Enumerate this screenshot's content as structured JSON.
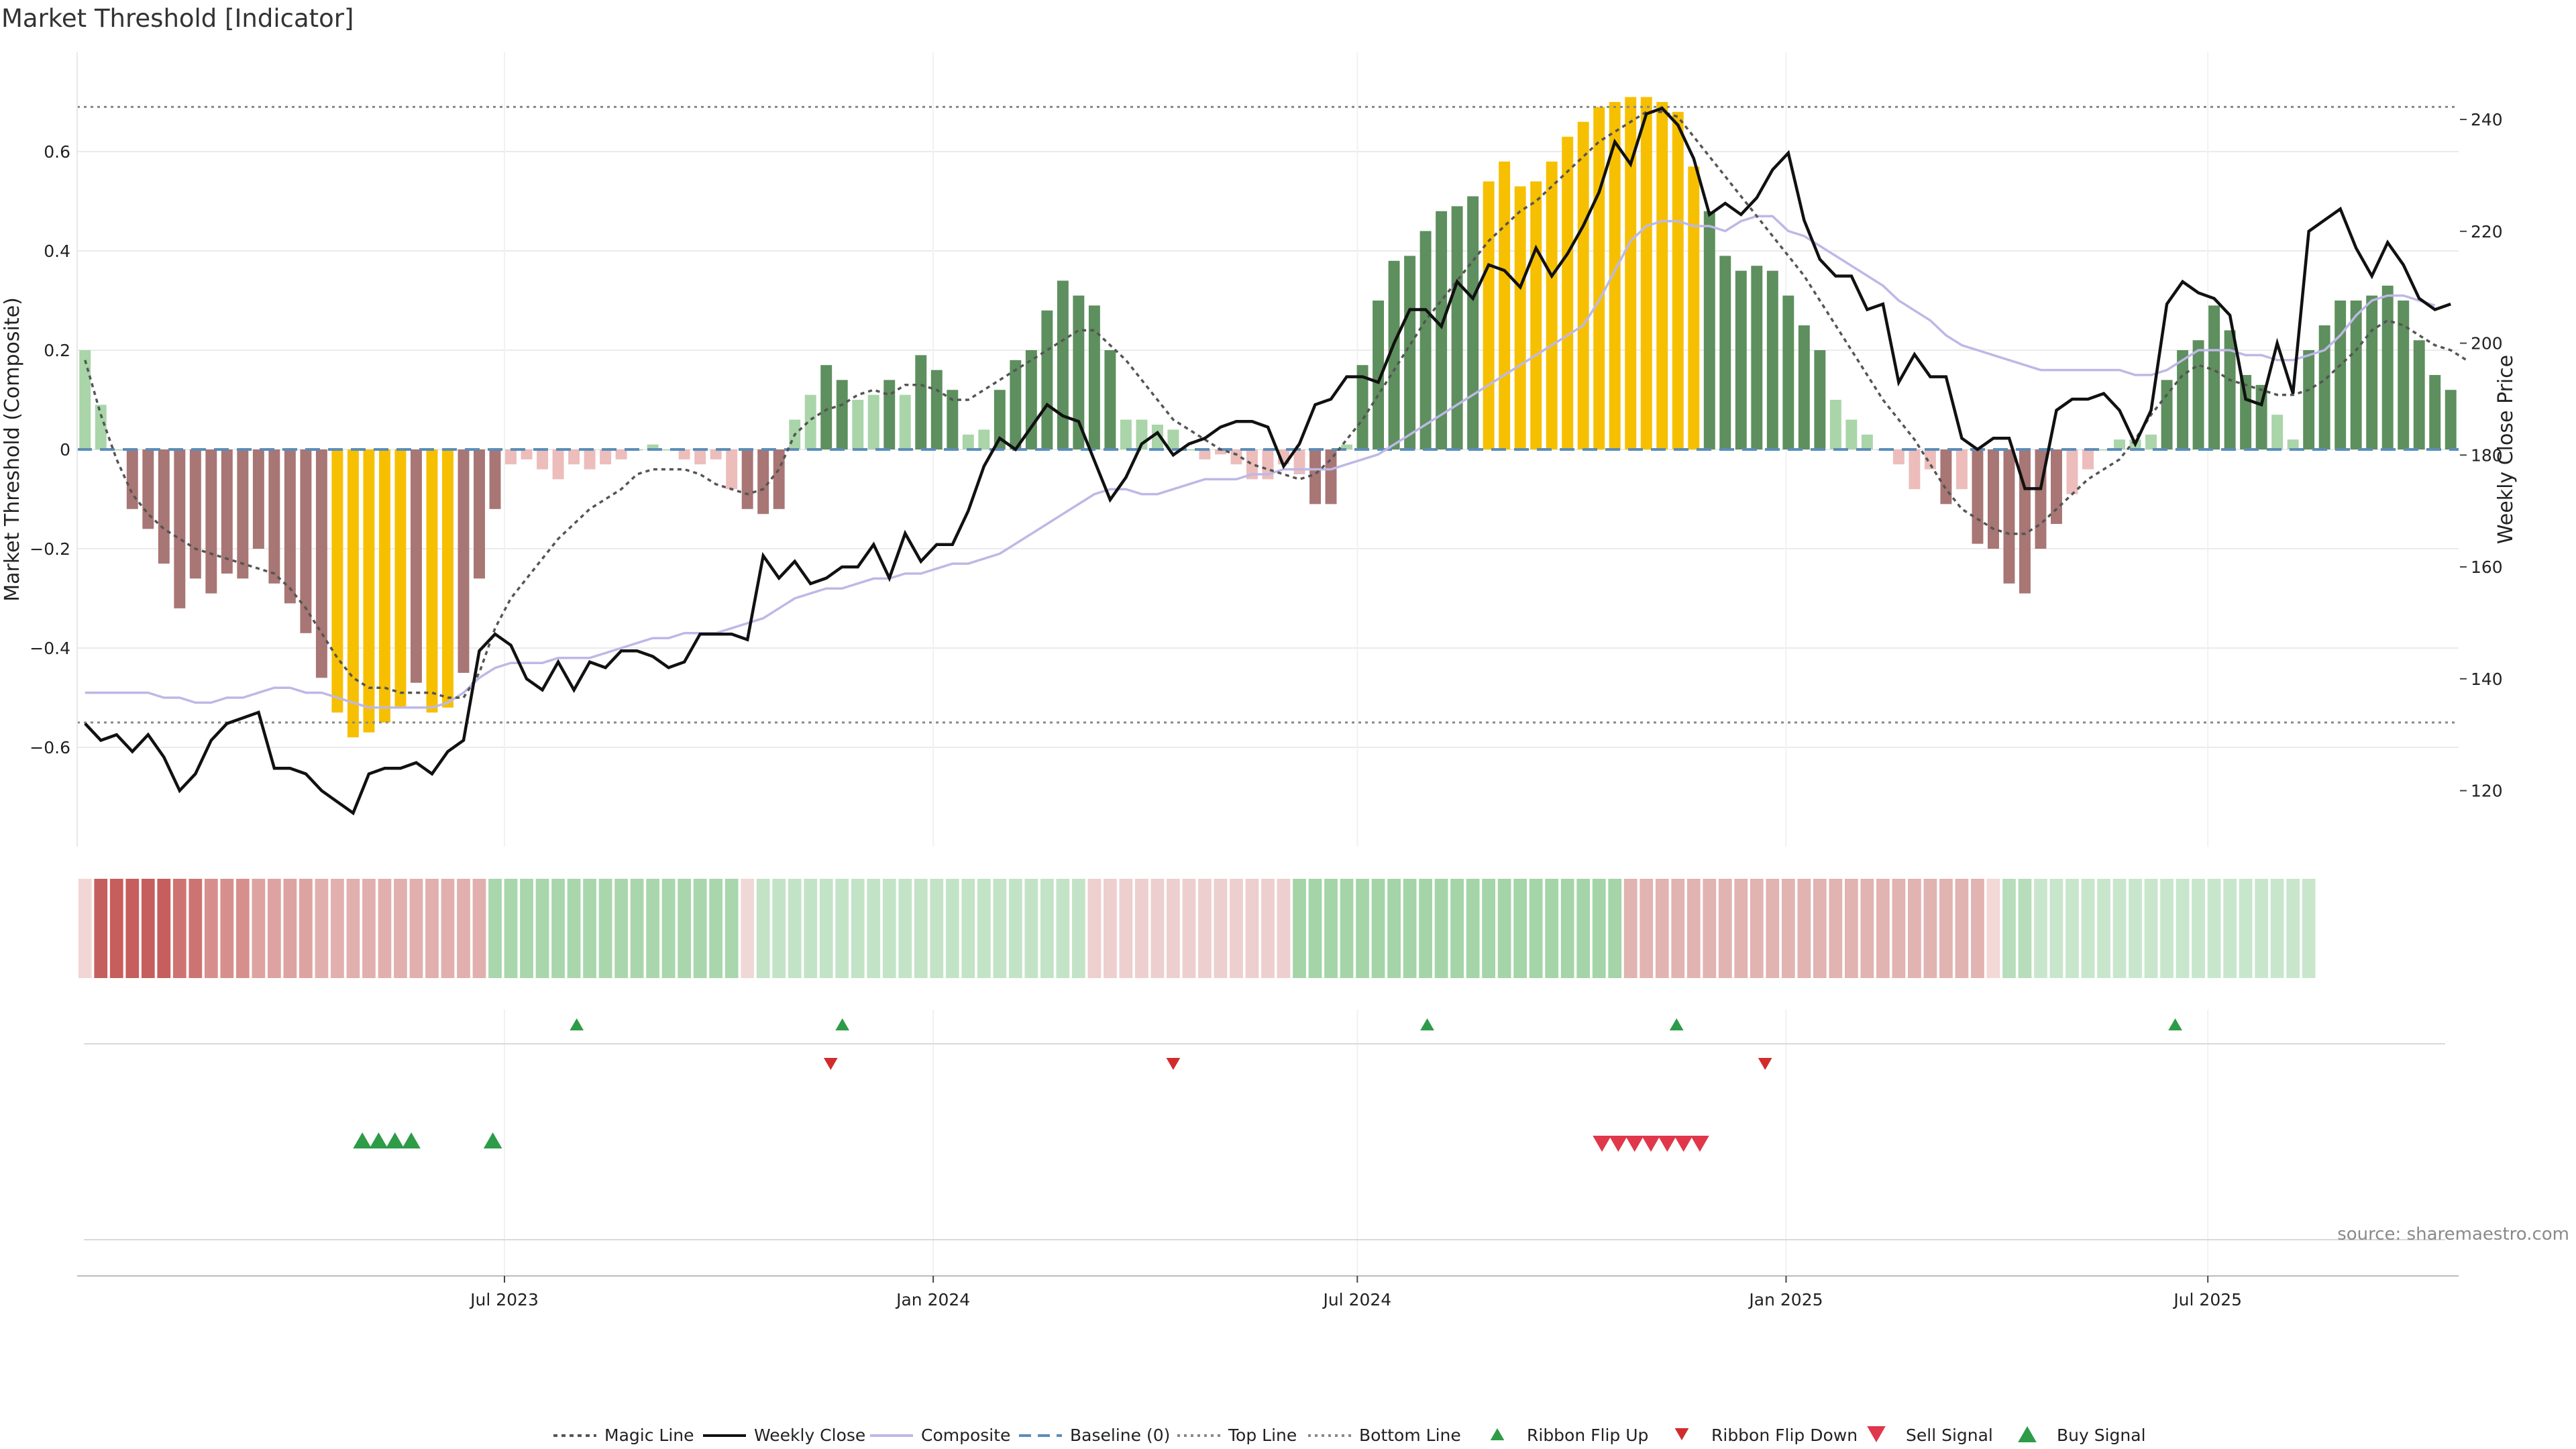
{
  "chart_data": {
    "type": "bar",
    "title": "Market Threshold [Indicator]",
    "ylabel": "Market Threshold (Composite)",
    "y2label": "Weekly Close Price",
    "source": "source: sharemaestro.com",
    "ylim": [
      -0.8,
      0.8
    ],
    "y2lim": [
      110,
      252
    ],
    "yticks": [
      -0.6,
      -0.4,
      -0.2,
      0,
      0.2,
      0.4,
      0.6
    ],
    "ytick_labels": [
      "−0.6",
      "−0.4",
      "−0.2",
      "0",
      "0.2",
      "0.4",
      "0.6"
    ],
    "y2ticks": [
      120,
      140,
      160,
      180,
      200,
      220,
      240
    ],
    "y2tick_labels": [
      "120",
      "140",
      "160",
      "180",
      "200",
      "220",
      "240"
    ],
    "x_start": "2023-01-02",
    "x_end": "2025-10-13",
    "xticks": [
      "2023-07-01",
      "2024-01-01",
      "2024-07-01",
      "2025-01-01",
      "2025-07-01"
    ],
    "xtick_labels": [
      "Jul 2023",
      "Jan 2024",
      "Jul 2024",
      "Jan 2025",
      "Jul 2025"
    ],
    "top_line": 0.69,
    "bottom_line": -0.55,
    "baseline": 0,
    "grid": true,
    "legend_position": "bottom-center",
    "legend": [
      "Magic Line",
      "Weekly Close",
      "Composite",
      "Baseline (0)",
      "Top Line",
      "Bottom Line",
      "Ribbon Flip Up",
      "Ribbon Flip Down",
      "Sell Signal",
      "Buy Signal"
    ],
    "composite": [
      0.2,
      0.09,
      0,
      -0.12,
      -0.16,
      -0.23,
      -0.32,
      -0.26,
      -0.29,
      -0.25,
      -0.26,
      -0.2,
      -0.27,
      -0.31,
      -0.37,
      -0.46,
      -0.53,
      -0.58,
      -0.57,
      -0.55,
      -0.52,
      -0.47,
      -0.53,
      -0.52,
      -0.45,
      -0.26,
      -0.12,
      -0.03,
      -0.02,
      -0.04,
      -0.06,
      -0.03,
      -0.04,
      -0.03,
      -0.02,
      0,
      0.01,
      0,
      -0.02,
      -0.03,
      -0.02,
      -0.08,
      -0.12,
      -0.13,
      -0.12,
      0.06,
      0.11,
      0.17,
      0.14,
      0.1,
      0.11,
      0.14,
      0.11,
      0.19,
      0.16,
      0.12,
      0.03,
      0.04,
      0.12,
      0.18,
      0.2,
      0.28,
      0.34,
      0.31,
      0.29,
      0.2,
      0.06,
      0.06,
      0.05,
      0.04,
      0,
      -0.02,
      -0.01,
      -0.03,
      -0.06,
      -0.06,
      -0.03,
      -0.05,
      -0.11,
      -0.11,
      0.01,
      0.17,
      0.3,
      0.38,
      0.39,
      0.44,
      0.48,
      0.49,
      0.51,
      0.54,
      0.58,
      0.53,
      0.54,
      0.58,
      0.63,
      0.66,
      0.69,
      0.7,
      0.71,
      0.71,
      0.7,
      0.68,
      0.57,
      0.48,
      0.39,
      0.36,
      0.37,
      0.36,
      0.31,
      0.25,
      0.2,
      0.1,
      0.06,
      0.03,
      0,
      -0.03,
      -0.08,
      -0.04,
      -0.11,
      -0.08,
      -0.19,
      -0.2,
      -0.27,
      -0.29,
      -0.2,
      -0.15,
      -0.09,
      -0.04,
      0,
      0.02,
      0.02,
      0.03,
      0.14,
      0.2,
      0.22,
      0.29,
      0.24,
      0.15,
      0.13,
      0.07,
      0.02,
      0.2,
      0.25,
      0.3,
      0.3,
      0.31,
      0.33,
      0.3,
      0.22,
      0.15,
      0.12
    ],
    "bar_colors": {
      "strong_positive": "#5e8f5e",
      "weak_positive": "#a9d5a9",
      "strong_negative": "#a87674",
      "weak_negative": "#ecbdbb",
      "extreme": "#f6c000"
    },
    "composite_line": [
      -0.49,
      -0.49,
      -0.49,
      -0.49,
      -0.49,
      -0.5,
      -0.5,
      -0.51,
      -0.51,
      -0.5,
      -0.5,
      -0.49,
      -0.48,
      -0.48,
      -0.49,
      -0.49,
      -0.5,
      -0.51,
      -0.52,
      -0.52,
      -0.52,
      -0.52,
      -0.52,
      -0.51,
      -0.49,
      -0.46,
      -0.44,
      -0.43,
      -0.43,
      -0.43,
      -0.42,
      -0.42,
      -0.42,
      -0.41,
      -0.4,
      -0.39,
      -0.38,
      -0.38,
      -0.37,
      -0.37,
      -0.37,
      -0.36,
      -0.35,
      -0.34,
      -0.32,
      -0.3,
      -0.29,
      -0.28,
      -0.28,
      -0.27,
      -0.26,
      -0.26,
      -0.25,
      -0.25,
      -0.24,
      -0.23,
      -0.23,
      -0.22,
      -0.21,
      -0.19,
      -0.17,
      -0.15,
      -0.13,
      -0.11,
      -0.09,
      -0.08,
      -0.08,
      -0.09,
      -0.09,
      -0.08,
      -0.07,
      -0.06,
      -0.06,
      -0.06,
      -0.05,
      -0.05,
      -0.04,
      -0.04,
      -0.04,
      -0.04,
      -0.03,
      -0.02,
      -0.01,
      0.01,
      0.03,
      0.05,
      0.07,
      0.09,
      0.11,
      0.13,
      0.15,
      0.17,
      0.19,
      0.21,
      0.23,
      0.25,
      0.3,
      0.36,
      0.42,
      0.45,
      0.46,
      0.46,
      0.45,
      0.45,
      0.44,
      0.46,
      0.47,
      0.47,
      0.44,
      0.43,
      0.41,
      0.39,
      0.37,
      0.35,
      0.33,
      0.3,
      0.28,
      0.26,
      0.23,
      0.21,
      0.2,
      0.19,
      0.18,
      0.17,
      0.16,
      0.16,
      0.16,
      0.16,
      0.16,
      0.16,
      0.15,
      0.15,
      0.16,
      0.18,
      0.2,
      0.2,
      0.2,
      0.19,
      0.19,
      0.18,
      0.18,
      0.19,
      0.2,
      0.23,
      0.27,
      0.3,
      0.31,
      0.31,
      0.3,
      0.29
    ],
    "weekly_close": [
      132,
      129,
      130,
      127,
      130,
      126,
      120,
      123,
      129,
      132,
      133,
      134,
      124,
      124,
      123,
      120,
      118,
      116,
      123,
      124,
      124,
      125,
      123,
      127,
      129,
      145,
      148,
      146,
      140,
      138,
      143,
      138,
      143,
      142,
      145,
      145,
      144,
      142,
      143,
      148,
      148,
      148,
      147,
      162,
      158,
      161,
      157,
      158,
      160,
      160,
      164,
      158,
      166,
      161,
      164,
      164,
      170,
      178,
      183,
      181,
      185,
      189,
      187,
      186,
      179,
      172,
      176,
      182,
      184,
      180,
      182,
      183,
      185,
      186,
      186,
      185,
      178,
      182,
      189,
      190,
      194,
      194,
      193,
      200,
      206,
      206,
      203,
      211,
      208,
      214,
      213,
      210,
      217,
      212,
      216,
      221,
      227,
      236,
      232,
      241,
      242,
      239,
      233,
      223,
      225,
      223,
      226,
      231,
      234,
      222,
      215,
      212,
      212,
      206,
      207,
      193,
      198,
      194,
      194,
      183,
      181,
      183,
      183,
      174,
      174,
      188,
      190,
      190,
      191,
      188,
      182,
      188,
      207,
      211,
      209,
      208,
      205,
      190,
      189,
      200,
      191,
      220,
      222,
      224,
      217,
      212,
      218,
      214,
      208,
      206,
      207
    ],
    "magic_line": [
      0.18,
      0.07,
      -0.02,
      -0.09,
      -0.13,
      -0.16,
      -0.18,
      -0.2,
      -0.21,
      -0.22,
      -0.23,
      -0.24,
      -0.25,
      -0.28,
      -0.32,
      -0.37,
      -0.42,
      -0.46,
      -0.48,
      -0.48,
      -0.49,
      -0.49,
      -0.49,
      -0.5,
      -0.5,
      -0.45,
      -0.36,
      -0.3,
      -0.26,
      -0.22,
      -0.18,
      -0.15,
      -0.12,
      -0.1,
      -0.08,
      -0.05,
      -0.04,
      -0.04,
      -0.04,
      -0.05,
      -0.07,
      -0.08,
      -0.09,
      -0.08,
      -0.04,
      0.03,
      0.06,
      0.08,
      0.09,
      0.11,
      0.12,
      0.11,
      0.13,
      0.13,
      0.12,
      0.1,
      0.1,
      0.12,
      0.14,
      0.16,
      0.18,
      0.2,
      0.22,
      0.24,
      0.24,
      0.21,
      0.18,
      0.14,
      0.1,
      0.06,
      0.04,
      0.02,
      0,
      -0.01,
      -0.03,
      -0.04,
      -0.05,
      -0.06,
      -0.05,
      -0.02,
      0.02,
      0.06,
      0.11,
      0.16,
      0.21,
      0.26,
      0.3,
      0.34,
      0.38,
      0.42,
      0.45,
      0.48,
      0.5,
      0.53,
      0.56,
      0.59,
      0.62,
      0.64,
      0.66,
      0.68,
      0.68,
      0.67,
      0.63,
      0.59,
      0.55,
      0.51,
      0.47,
      0.43,
      0.39,
      0.35,
      0.3,
      0.25,
      0.2,
      0.15,
      0.1,
      0.06,
      0.02,
      -0.03,
      -0.08,
      -0.12,
      -0.14,
      -0.16,
      -0.17,
      -0.17,
      -0.15,
      -0.12,
      -0.09,
      -0.06,
      -0.04,
      -0.02,
      0.02,
      0.07,
      0.11,
      0.15,
      0.17,
      0.16,
      0.14,
      0.13,
      0.12,
      0.11,
      0.11,
      0.12,
      0.14,
      0.17,
      0.2,
      0.24,
      0.26,
      0.25,
      0.23,
      0.21,
      0.2,
      0.18
    ],
    "ribbon": [
      {
        "c": "#f2d6d5",
        "n": 1
      },
      {
        "c": "#c45f5d",
        "n": 1
      },
      {
        "c": "#c55e5c",
        "n": 4
      },
      {
        "c": "#cd7472",
        "n": 2
      },
      {
        "c": "#d78f8d",
        "n": 3
      },
      {
        "c": "#dda3a1",
        "n": 4
      },
      {
        "c": "#e1b0ae",
        "n": 11
      },
      {
        "c": "#a9d6ad",
        "n": 16
      },
      {
        "c": "#f0d8d7",
        "n": 1
      },
      {
        "c": "#c3e3c6",
        "n": 21
      },
      {
        "c": "#eccfce",
        "n": 13
      },
      {
        "c": "#a4d4a8",
        "n": 21
      },
      {
        "c": "#e1b3b1",
        "n": 23
      },
      {
        "c": "#f2d8d7",
        "n": 1
      },
      {
        "c": "#b7ddba",
        "n": 2
      },
      {
        "c": "#c8e6cb",
        "n": 18
      }
    ],
    "ribbon_flip_up": [
      "2023-08-01",
      "2024-11-15",
      "2024-07-31",
      "2025-06-17"
    ],
    "ribbon_flip_up_extra": [
      "2023-11-23"
    ],
    "ribbon_flip_down": [
      "2023-11-18",
      "2024-04-13",
      "2024-12-23"
    ],
    "buy_signals": [
      "2023-05-01",
      "2023-05-08",
      "2023-05-15",
      "2023-05-22",
      "2023-06-26"
    ],
    "sell_signals": [
      "2024-10-14",
      "2024-10-21",
      "2024-10-28",
      "2024-11-04",
      "2024-11-11",
      "2024-11-18",
      "2024-11-25"
    ]
  }
}
